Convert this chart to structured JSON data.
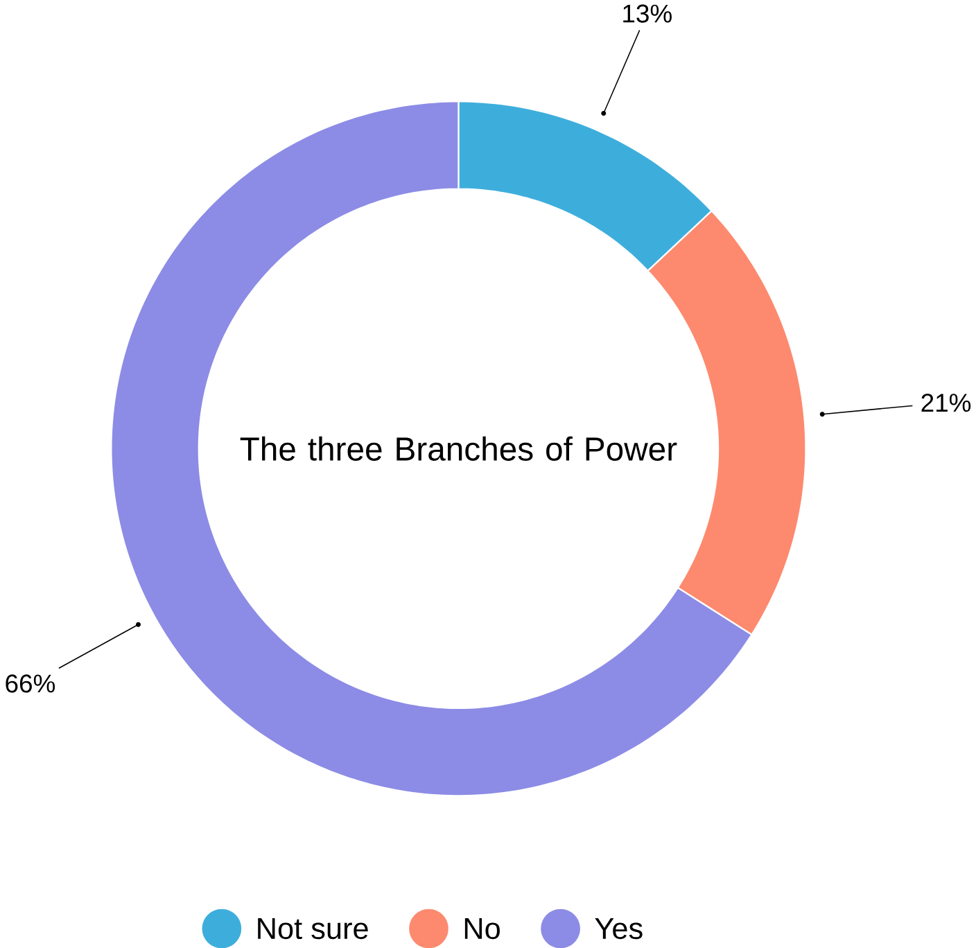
{
  "chart_data": {
    "type": "donut",
    "title": "The three Branches of Power",
    "categories": [
      "Not sure",
      "No",
      "Yes"
    ],
    "values": [
      13,
      21,
      66
    ],
    "colors": [
      "#3daedc",
      "#fd8a6e",
      "#8c8ce6"
    ],
    "value_labels": [
      "13%",
      "21%",
      "66%"
    ],
    "legend": "bottom"
  }
}
